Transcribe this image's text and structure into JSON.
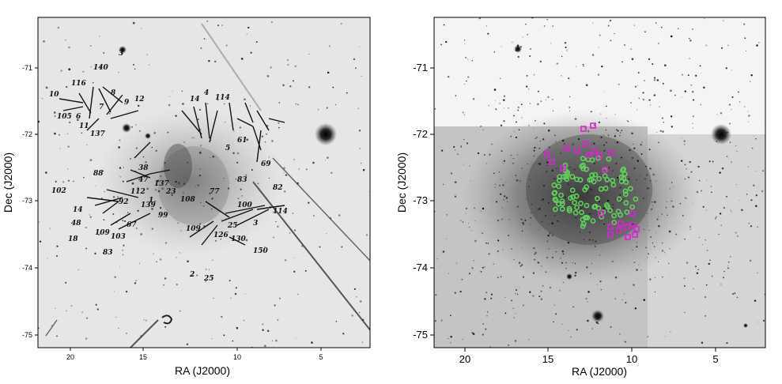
{
  "left_panel": {
    "xlabel": "RA (J2000)",
    "ylabel": "Dec (J2000)",
    "x_ticks": [
      "20",
      "15",
      "10",
      "5"
    ],
    "y_ticks": [
      "-71",
      "-72",
      "-73",
      "-74",
      "-75"
    ],
    "annotations": [
      "10",
      "116",
      "140",
      "3",
      "105",
      "6",
      "7",
      "8",
      "9",
      "12",
      "11",
      "137",
      "14",
      "4",
      "114",
      "5",
      "61",
      "69",
      "82",
      "102",
      "88",
      "38",
      "47",
      "112",
      "137",
      "14",
      "48",
      "18",
      "109",
      "103",
      "67",
      "139",
      "99",
      "108",
      "77",
      "114",
      "109",
      "83",
      "150",
      "2",
      "25",
      "130",
      "126",
      "100",
      "3",
      "1",
      "23",
      "92",
      "25",
      "83"
    ]
  },
  "right_panel": {
    "xlabel": "RA (J2000)",
    "ylabel": "Dec (J2000)",
    "x_ticks": [
      "20",
      "15",
      "10",
      "5"
    ],
    "y_ticks": [
      "-71",
      "-72",
      "-73",
      "-74",
      "-75"
    ],
    "marker_colors": {
      "green": "#5fd35a",
      "magenta": "#e020d8"
    }
  }
}
